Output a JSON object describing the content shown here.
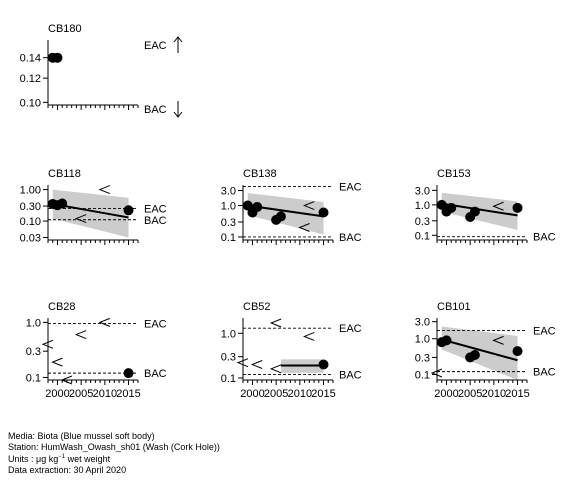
{
  "chart_data": [
    {
      "type": "scatter",
      "title": "CB180",
      "log_y": true,
      "ylim": [
        0.098,
        0.16
      ],
      "yticks": [
        0.1,
        0.12,
        0.14
      ],
      "ytick_labels": [
        "0.10",
        "0.12",
        "0.14"
      ],
      "xlim": [
        1998,
        2017
      ],
      "xticks": [
        2000,
        2005,
        2010,
        2015
      ],
      "xtick_labels": [],
      "ref_lines": [
        {
          "label": "EAC",
          "value": null,
          "direction": "up"
        },
        {
          "label": "BAC",
          "value": null,
          "direction": "down"
        }
      ],
      "points": [
        {
          "x": 1999,
          "y": 0.14,
          "type": "dot"
        },
        {
          "x": 2000,
          "y": 0.14,
          "type": "dot"
        }
      ],
      "trend": null
    },
    {
      "type": "scatter",
      "title": "CB118",
      "log_y": true,
      "ylim": [
        0.025,
        1.4
      ],
      "yticks": [
        0.03,
        0.1,
        0.3,
        1.0
      ],
      "ytick_labels": [
        "0.03",
        "0.10",
        "0.30",
        "1.00"
      ],
      "xlim": [
        1998,
        2017
      ],
      "xticks": [
        2000,
        2005,
        2010,
        2015
      ],
      "xtick_labels": [],
      "ref_lines": [
        {
          "label": "EAC",
          "value": 0.25
        },
        {
          "label": "BAC",
          "value": 0.11
        }
      ],
      "points": [
        {
          "x": 1999,
          "y": 0.35,
          "type": "dot"
        },
        {
          "x": 2000,
          "y": 0.32,
          "type": "dot"
        },
        {
          "x": 2001,
          "y": 0.36,
          "type": "dot"
        },
        {
          "x": 2015,
          "y": 0.22,
          "type": "dot"
        },
        {
          "x": 2005,
          "y": 0.12,
          "type": "lt"
        },
        {
          "x": 2010,
          "y": 1.0,
          "type": "lt"
        }
      ],
      "trend": {
        "x": [
          1999,
          2015
        ],
        "y": [
          0.35,
          0.13
        ],
        "lower": [
          0.12,
          0.03
        ],
        "upper": [
          1.0,
          0.55
        ]
      }
    },
    {
      "type": "scatter",
      "title": "CB138",
      "log_y": true,
      "ylim": [
        0.08,
        4.5
      ],
      "yticks": [
        0.1,
        0.3,
        1.0,
        3.0
      ],
      "ytick_labels": [
        "0.1",
        "0.3",
        "1.0",
        "3.0"
      ],
      "xlim": [
        1998,
        2017
      ],
      "xticks": [
        2000,
        2005,
        2010,
        2015
      ],
      "xtick_labels": [],
      "ref_lines": [
        {
          "label": "EAC",
          "value": 4.0
        },
        {
          "label": "BAC",
          "value": 0.1
        }
      ],
      "points": [
        {
          "x": 1999,
          "y": 1.0,
          "type": "dot"
        },
        {
          "x": 2000,
          "y": 0.6,
          "type": "dot"
        },
        {
          "x": 2001,
          "y": 0.9,
          "type": "dot"
        },
        {
          "x": 2005,
          "y": 0.35,
          "type": "dot"
        },
        {
          "x": 2006,
          "y": 0.45,
          "type": "dot"
        },
        {
          "x": 2015,
          "y": 0.6,
          "type": "dot"
        },
        {
          "x": 2011,
          "y": 0.2,
          "type": "lt"
        },
        {
          "x": 2012,
          "y": 1.0,
          "type": "lt"
        }
      ],
      "trend": {
        "x": [
          1999,
          2015
        ],
        "y": [
          1.0,
          0.45
        ],
        "lower": [
          0.5,
          0.12
        ],
        "upper": [
          2.5,
          1.3
        ]
      }
    },
    {
      "type": "scatter",
      "title": "CB153",
      "log_y": true,
      "ylim": [
        0.07,
        4.5
      ],
      "yticks": [
        0.1,
        0.3,
        1.0,
        3.0
      ],
      "ytick_labels": [
        "0.1",
        "0.3",
        "1.0",
        "3.0"
      ],
      "xlim": [
        1998,
        2017
      ],
      "xticks": [
        2000,
        2005,
        2010,
        2015
      ],
      "xtick_labels": [],
      "ref_lines": [
        {
          "label": "BAC",
          "value": 0.09
        }
      ],
      "points": [
        {
          "x": 1999,
          "y": 1.0,
          "type": "dot"
        },
        {
          "x": 2000,
          "y": 0.6,
          "type": "dot"
        },
        {
          "x": 2001,
          "y": 0.8,
          "type": "dot"
        },
        {
          "x": 2005,
          "y": 0.4,
          "type": "dot"
        },
        {
          "x": 2006,
          "y": 0.6,
          "type": "dot"
        },
        {
          "x": 2015,
          "y": 0.8,
          "type": "dot"
        },
        {
          "x": 2011,
          "y": 0.9,
          "type": "lt"
        }
      ],
      "trend": {
        "x": [
          1999,
          2015
        ],
        "y": [
          1.1,
          0.45
        ],
        "lower": [
          0.6,
          0.15
        ],
        "upper": [
          2.5,
          1.3
        ]
      }
    },
    {
      "type": "scatter",
      "title": "CB28",
      "log_y": true,
      "ylim": [
        0.09,
        1.2
      ],
      "yticks": [
        0.1,
        0.3,
        1.0
      ],
      "ytick_labels": [
        "0.1",
        "0.3",
        "1.0"
      ],
      "xlim": [
        1998,
        2017
      ],
      "xticks": [
        2000,
        2005,
        2010,
        2015
      ],
      "xtick_labels": [
        "2000",
        "2005",
        "2010",
        "2015"
      ],
      "ref_lines": [
        {
          "label": "EAC",
          "value": 0.95
        },
        {
          "label": "BAC",
          "value": 0.12
        }
      ],
      "points": [
        {
          "x": 2015,
          "y": 0.12,
          "type": "dot"
        },
        {
          "x": 1998,
          "y": 0.4,
          "type": "lt"
        },
        {
          "x": 2000,
          "y": 0.19,
          "type": "lt"
        },
        {
          "x": 2005,
          "y": 0.6,
          "type": "lt"
        },
        {
          "x": 2010,
          "y": 1.0,
          "type": "lt"
        },
        {
          "x": 2002,
          "y": 0.09,
          "type": "lt"
        }
      ],
      "trend": null
    },
    {
      "type": "scatter",
      "title": "CB52",
      "log_y": true,
      "ylim": [
        0.09,
        2.2
      ],
      "yticks": [
        0.1,
        0.3,
        1.0
      ],
      "ytick_labels": [
        "0.1",
        "0.3",
        "1.0"
      ],
      "xlim": [
        1998,
        2017
      ],
      "xticks": [
        2000,
        2005,
        2010,
        2015
      ],
      "xtick_labels": [
        "2000",
        "2005",
        "2010",
        "2015"
      ],
      "ref_lines": [
        {
          "label": "EAC",
          "value": 1.3
        },
        {
          "label": "BAC",
          "value": 0.12
        }
      ],
      "points": [
        {
          "x": 2015,
          "y": 0.2,
          "type": "dot"
        },
        {
          "x": 2005,
          "y": 1.7,
          "type": "lt"
        },
        {
          "x": 2012,
          "y": 0.85,
          "type": "lt"
        },
        {
          "x": 1998,
          "y": 0.22,
          "type": "lt"
        },
        {
          "x": 2001,
          "y": 0.2,
          "type": "lt"
        },
        {
          "x": 2005,
          "y": 0.16,
          "type": "lt"
        }
      ],
      "trend": {
        "x": [
          2006,
          2015
        ],
        "y": [
          0.19,
          0.19
        ],
        "lower": [
          0.13,
          0.13
        ],
        "upper": [
          0.26,
          0.26
        ]
      }
    },
    {
      "type": "scatter",
      "title": "CB101",
      "log_y": true,
      "ylim": [
        0.07,
        3.8
      ],
      "yticks": [
        0.1,
        0.3,
        1.0,
        3.0
      ],
      "ytick_labels": [
        "0.1",
        "0.3",
        "1.0",
        "3.0"
      ],
      "xlim": [
        1998,
        2017
      ],
      "xticks": [
        2000,
        2005,
        2010,
        2015
      ],
      "xtick_labels": [
        "2000",
        "2005",
        "2010",
        "2015"
      ],
      "ref_lines": [
        {
          "label": "EAC",
          "value": 1.7
        },
        {
          "label": "BAC",
          "value": 0.12
        }
      ],
      "points": [
        {
          "x": 1999,
          "y": 0.8,
          "type": "dot"
        },
        {
          "x": 2000,
          "y": 0.9,
          "type": "dot"
        },
        {
          "x": 2005,
          "y": 0.3,
          "type": "dot"
        },
        {
          "x": 2006,
          "y": 0.35,
          "type": "dot"
        },
        {
          "x": 2015,
          "y": 0.45,
          "type": "dot"
        },
        {
          "x": 1998,
          "y": 0.11,
          "type": "lt"
        },
        {
          "x": 2011,
          "y": 0.9,
          "type": "lt"
        }
      ],
      "trend": {
        "x": [
          1999,
          2015
        ],
        "y": [
          0.95,
          0.25
        ],
        "lower": [
          0.5,
          0.05
        ],
        "upper": [
          2.2,
          1.2
        ]
      }
    }
  ],
  "footer": {
    "media": "Media: Biota (Blue mussel soft body)",
    "station": "Station: HumWash_Owash_sh01 (Wash (Cork Hole))",
    "units_prefix": "Units : ",
    "units_mu": "μg kg",
    "units_exp": "−1",
    "units_suffix": " wet weight",
    "extraction": "Data extraction: 30 April 2020"
  }
}
